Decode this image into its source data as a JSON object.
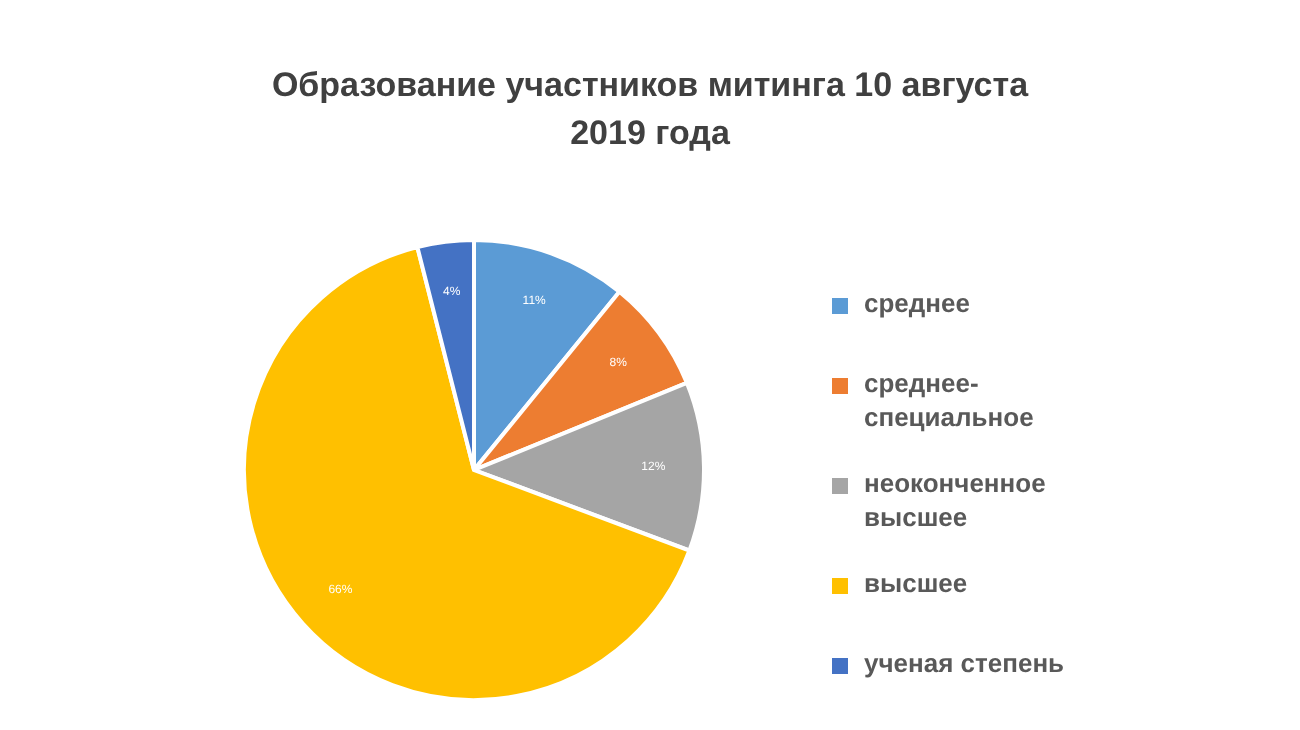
{
  "chart_data": {
    "type": "pie",
    "title": "Образование участников митинга 10 августа\n2019 года",
    "categories": [
      "среднее",
      "среднее-специальное",
      "неоконченное высшее",
      "высшее",
      "ученая степень"
    ],
    "values": [
      11,
      8,
      12,
      66,
      4
    ],
    "colors": [
      "#5b9bd5",
      "#ed7d31",
      "#a5a5a5",
      "#ffc000",
      "#4472c4"
    ],
    "value_labels": [
      "11%",
      "8%",
      "12%",
      "66%",
      "4%"
    ],
    "legend": "right"
  }
}
